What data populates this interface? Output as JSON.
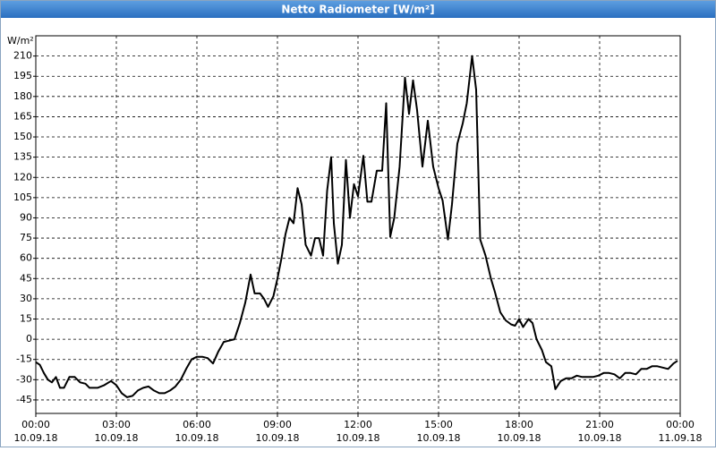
{
  "chart_data": {
    "type": "line",
    "title": "Netto Radiometer [W/m²]",
    "y_unit": "W/m²",
    "x": [
      0,
      0.15,
      0.3,
      0.45,
      0.6,
      0.75,
      0.9,
      1.05,
      1.25,
      1.45,
      1.65,
      1.85,
      2.0,
      2.3,
      2.55,
      2.8,
      3.0,
      3.2,
      3.4,
      3.6,
      3.8,
      4.0,
      4.2,
      4.4,
      4.6,
      4.8,
      5.0,
      5.2,
      5.4,
      5.6,
      5.8,
      6.0,
      6.2,
      6.4,
      6.6,
      6.8,
      7.0,
      7.2,
      7.4,
      7.6,
      7.8,
      8.0,
      8.15,
      8.35,
      8.5,
      8.65,
      8.85,
      9.0,
      9.15,
      9.3,
      9.45,
      9.6,
      9.75,
      9.9,
      10.05,
      10.25,
      10.4,
      10.55,
      10.7,
      10.85,
      11.0,
      11.1,
      11.25,
      11.4,
      11.55,
      11.7,
      11.85,
      12.0,
      12.2,
      12.35,
      12.5,
      12.7,
      12.9,
      13.05,
      13.2,
      13.35,
      13.55,
      13.75,
      13.9,
      14.05,
      14.2,
      14.4,
      14.6,
      14.8,
      15.0,
      15.15,
      15.35,
      15.5,
      15.7,
      15.9,
      16.05,
      16.25,
      16.4,
      16.55,
      16.75,
      16.95,
      17.1,
      17.3,
      17.5,
      17.7,
      17.85,
      18.0,
      18.15,
      18.35,
      18.5,
      18.65,
      18.85,
      19.0,
      19.2,
      19.35,
      19.55,
      19.75,
      19.95,
      20.15,
      20.35,
      20.55,
      20.75,
      20.95,
      21.15,
      21.35,
      21.55,
      21.75,
      21.95,
      22.15,
      22.35,
      22.55,
      22.75,
      22.95,
      23.15,
      23.35,
      23.55,
      23.75,
      23.9
    ],
    "series": [
      {
        "name": "Netto Radiometer",
        "color": "#000000",
        "values": [
          -17,
          -19,
          -25,
          -30,
          -32,
          -28,
          -36,
          -36,
          -28,
          -28,
          -32,
          -33,
          -36,
          -36,
          -34,
          -31,
          -34,
          -40,
          -43,
          -42,
          -38,
          -36,
          -35,
          -38,
          -40,
          -40,
          -38,
          -35,
          -30,
          -22,
          -15,
          -13,
          -13,
          -14,
          -18,
          -9,
          -2,
          -1,
          0,
          12,
          27,
          48,
          34,
          34,
          30,
          24,
          32,
          45,
          60,
          78,
          90,
          86,
          112,
          100,
          70,
          62,
          75,
          75,
          62,
          110,
          135,
          86,
          56,
          70,
          133,
          90,
          115,
          106,
          136,
          102,
          102,
          125,
          125,
          175,
          76,
          90,
          128,
          194,
          167,
          192,
          170,
          128,
          162,
          128,
          112,
          103,
          74,
          100,
          145,
          160,
          175,
          210,
          185,
          74,
          62,
          45,
          35,
          20,
          14,
          11,
          10,
          15,
          9,
          15,
          12,
          0,
          -8,
          -17,
          -20,
          -37,
          -31,
          -29,
          -29,
          -27,
          -28,
          -28,
          -28,
          -27,
          -25,
          -25,
          -26,
          -29,
          -25,
          -25,
          -26,
          -22,
          -22,
          -20,
          -20,
          -21,
          -22,
          -18,
          -16
        ]
      }
    ],
    "xlim": [
      0,
      24
    ],
    "xticks": [
      {
        "value": 0,
        "label": "00:00"
      },
      {
        "value": 3,
        "label": "03:00"
      },
      {
        "value": 6,
        "label": "06:00"
      },
      {
        "value": 9,
        "label": "09:00"
      },
      {
        "value": 12,
        "label": "12:00"
      },
      {
        "value": 15,
        "label": "15:00"
      },
      {
        "value": 18,
        "label": "18:00"
      },
      {
        "value": 21,
        "label": "21:00"
      },
      {
        "value": 24,
        "label": "00:00"
      }
    ],
    "xtick_dates": [
      "10.09.18",
      "10.09.18",
      "10.09.18",
      "10.09.18",
      "10.09.18",
      "10.09.18",
      "10.09.18",
      "10.09.18",
      "11.09.18"
    ],
    "ylim": [
      -55,
      225
    ],
    "yticks": [
      -45,
      -30,
      -15,
      0,
      15,
      30,
      45,
      60,
      75,
      90,
      105,
      120,
      135,
      150,
      165,
      180,
      195,
      210
    ],
    "grid": true
  }
}
